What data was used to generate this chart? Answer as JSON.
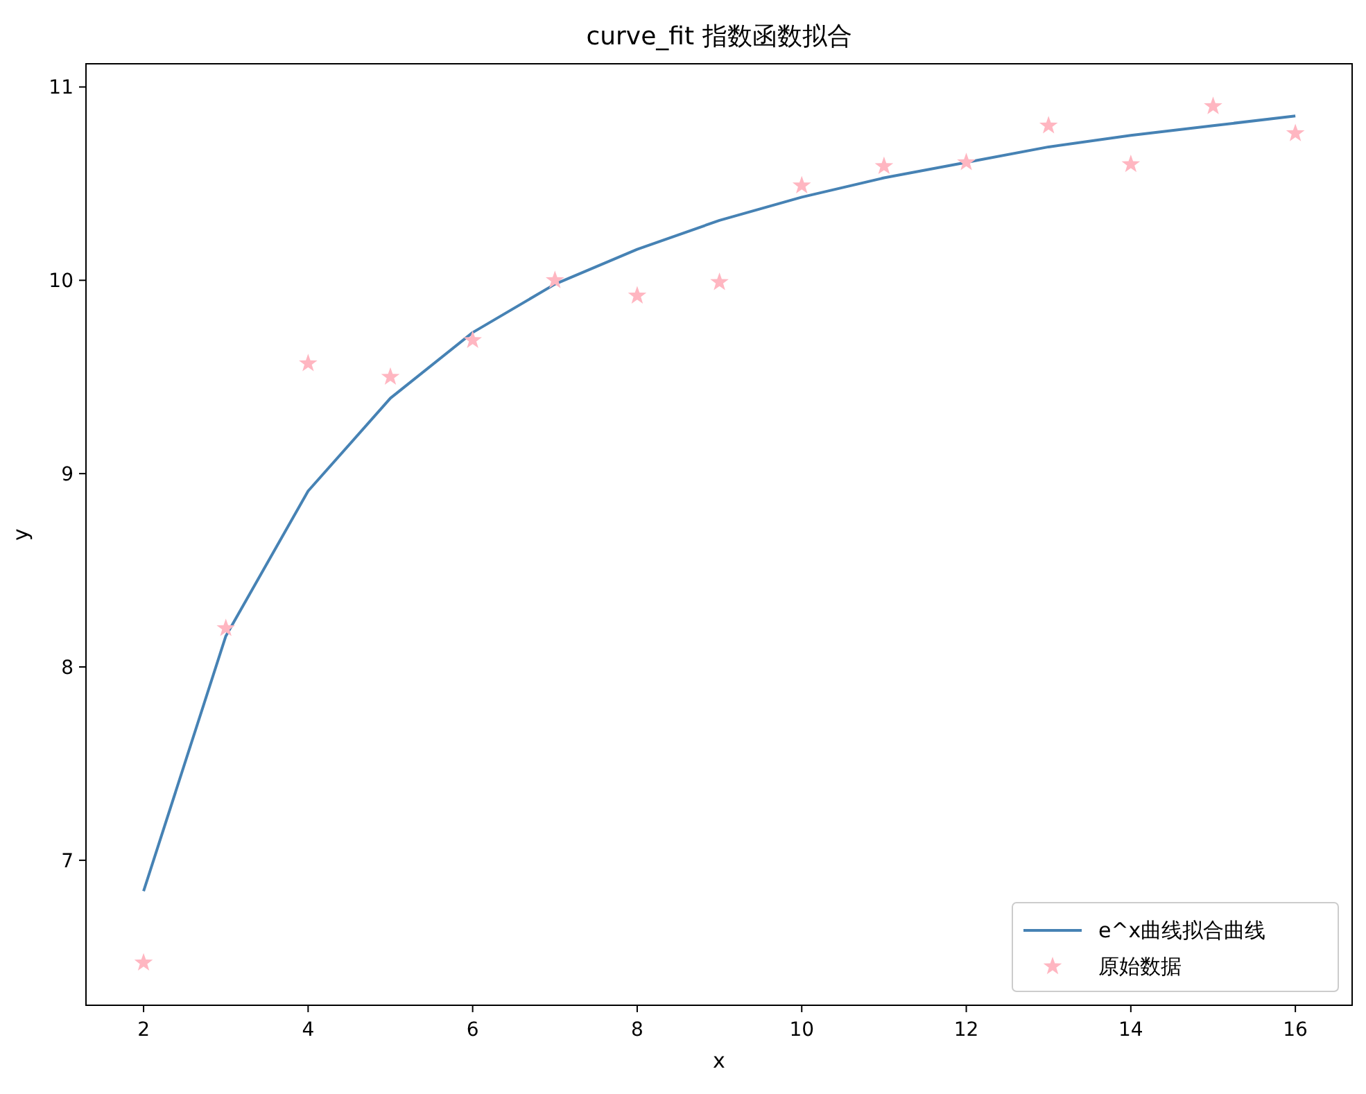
{
  "chart_data": {
    "type": "line",
    "title": "curve_fit 指数函数拟合",
    "xlabel": "x",
    "ylabel": "y",
    "x": [
      2,
      3,
      4,
      5,
      6,
      7,
      8,
      9,
      10,
      11,
      12,
      13,
      14,
      15,
      16
    ],
    "series": [
      {
        "name": "e^x曲线拟合曲线",
        "color": "#4682b4",
        "marker": "none",
        "values": [
          6.84,
          8.16,
          8.91,
          9.39,
          9.73,
          9.98,
          10.16,
          10.31,
          10.43,
          10.53,
          10.61,
          10.69,
          10.75,
          10.8,
          10.85
        ]
      },
      {
        "name": "原始数据",
        "type": "scatter",
        "color": "#ffb6c1",
        "marker": "star",
        "values": [
          6.47,
          8.2,
          9.57,
          9.5,
          9.69,
          10.0,
          9.92,
          9.99,
          10.49,
          10.59,
          10.61,
          10.8,
          10.6,
          10.9,
          10.76
        ]
      }
    ],
    "xlim": [
      1.3,
      16.69
    ],
    "ylim": [
      6.25,
      11.12
    ],
    "xticks": [
      2,
      4,
      6,
      8,
      10,
      12,
      14,
      16
    ],
    "yticks": [
      7,
      8,
      9,
      10,
      11
    ],
    "legend": "bottom right"
  }
}
